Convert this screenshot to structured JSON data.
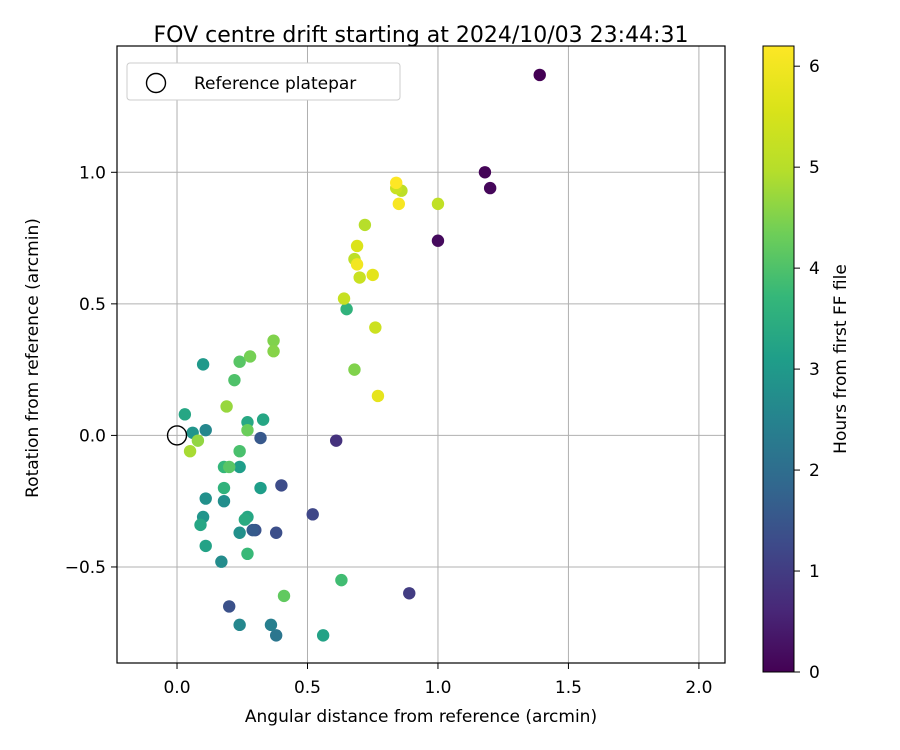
{
  "chart_data": {
    "type": "scatter",
    "title": "FOV centre drift starting at 2024/10/03 23:44:31",
    "xlabel": "Angular distance from reference (arcmin)",
    "ylabel": "Rotation from reference (arcmin)",
    "xlim": [
      -0.23,
      2.1
    ],
    "ylim": [
      -0.865,
      1.48
    ],
    "xticks": [
      0.0,
      0.5,
      1.0,
      1.5,
      2.0
    ],
    "xtick_labels": [
      "0.0",
      "0.5",
      "1.0",
      "1.5",
      "2.0"
    ],
    "yticks": [
      -0.5,
      0.0,
      0.5,
      1.0
    ],
    "ytick_labels": [
      "−0.5",
      "0.0",
      "0.5",
      "1.0"
    ],
    "grid": true,
    "colormap": "viridis",
    "colorbar": {
      "label": "Hours from first FF file",
      "range": [
        0,
        6.2
      ],
      "ticks": [
        0,
        1,
        2,
        3,
        4,
        5,
        6
      ],
      "tick_labels": [
        "0",
        "1",
        "2",
        "3",
        "4",
        "5",
        "6"
      ]
    },
    "legend": {
      "position": "upper-left",
      "entries": [
        "Reference platepar"
      ]
    },
    "reference_point": {
      "x": 0.0,
      "y": 0.0
    },
    "points": [
      {
        "x": 1.39,
        "y": 1.37,
        "c": 0.0
      },
      {
        "x": 1.18,
        "y": 1.0,
        "c": 0.05
      },
      {
        "x": 1.2,
        "y": 0.94,
        "c": 0.1
      },
      {
        "x": 1.0,
        "y": 0.74,
        "c": 0.15
      },
      {
        "x": 0.61,
        "y": -0.02,
        "c": 0.8
      },
      {
        "x": 0.89,
        "y": -0.6,
        "c": 1.0
      },
      {
        "x": 0.52,
        "y": -0.3,
        "c": 1.2
      },
      {
        "x": 0.4,
        "y": -0.19,
        "c": 1.3
      },
      {
        "x": 0.38,
        "y": -0.37,
        "c": 1.35
      },
      {
        "x": 0.3,
        "y": -0.36,
        "c": 1.45
      },
      {
        "x": 0.2,
        "y": -0.65,
        "c": 1.4
      },
      {
        "x": 0.32,
        "y": -0.01,
        "c": 1.55
      },
      {
        "x": 0.29,
        "y": -0.36,
        "c": 1.6
      },
      {
        "x": 0.38,
        "y": -0.76,
        "c": 2.2
      },
      {
        "x": 0.36,
        "y": -0.72,
        "c": 2.4
      },
      {
        "x": 0.24,
        "y": -0.72,
        "c": 2.6
      },
      {
        "x": 0.17,
        "y": -0.48,
        "c": 2.7
      },
      {
        "x": 0.24,
        "y": -0.37,
        "c": 2.8
      },
      {
        "x": 0.1,
        "y": -0.31,
        "c": 2.9
      },
      {
        "x": 0.11,
        "y": -0.24,
        "c": 2.8
      },
      {
        "x": 0.18,
        "y": -0.25,
        "c": 2.75
      },
      {
        "x": 0.11,
        "y": 0.02,
        "c": 2.6
      },
      {
        "x": 0.06,
        "y": 0.01,
        "c": 2.9
      },
      {
        "x": 0.1,
        "y": 0.27,
        "c": 3.0
      },
      {
        "x": 0.24,
        "y": -0.12,
        "c": 3.1
      },
      {
        "x": 0.32,
        "y": -0.2,
        "c": 3.1
      },
      {
        "x": 0.56,
        "y": -0.76,
        "c": 3.2
      },
      {
        "x": 0.11,
        "y": -0.42,
        "c": 3.2
      },
      {
        "x": 0.09,
        "y": -0.34,
        "c": 3.3
      },
      {
        "x": 0.27,
        "y": -0.31,
        "c": 3.3
      },
      {
        "x": 0.26,
        "y": -0.32,
        "c": 3.4
      },
      {
        "x": 0.27,
        "y": 0.05,
        "c": 3.35
      },
      {
        "x": 0.33,
        "y": 0.06,
        "c": 3.3
      },
      {
        "x": 0.03,
        "y": 0.08,
        "c": 3.3
      },
      {
        "x": 0.65,
        "y": 0.48,
        "c": 3.6
      },
      {
        "x": 0.18,
        "y": -0.2,
        "c": 3.6
      },
      {
        "x": 0.18,
        "y": -0.12,
        "c": 3.7
      },
      {
        "x": 0.27,
        "y": -0.45,
        "c": 3.75
      },
      {
        "x": 0.63,
        "y": -0.55,
        "c": 3.85
      },
      {
        "x": 0.24,
        "y": -0.06,
        "c": 3.95
      },
      {
        "x": 0.2,
        "y": -0.12,
        "c": 4.1
      },
      {
        "x": 0.22,
        "y": 0.21,
        "c": 4.0
      },
      {
        "x": 0.24,
        "y": 0.28,
        "c": 4.1
      },
      {
        "x": 0.41,
        "y": -0.61,
        "c": 4.2
      },
      {
        "x": 0.27,
        "y": 0.02,
        "c": 4.3
      },
      {
        "x": 0.28,
        "y": 0.3,
        "c": 4.4
      },
      {
        "x": 0.37,
        "y": 0.36,
        "c": 4.5
      },
      {
        "x": 0.37,
        "y": 0.32,
        "c": 4.55
      },
      {
        "x": 0.68,
        "y": 0.25,
        "c": 4.5
      },
      {
        "x": 0.08,
        "y": -0.02,
        "c": 4.65
      },
      {
        "x": 0.19,
        "y": 0.11,
        "c": 4.7
      },
      {
        "x": 0.05,
        "y": -0.06,
        "c": 4.85
      },
      {
        "x": 0.72,
        "y": 0.8,
        "c": 5.0
      },
      {
        "x": 0.68,
        "y": 0.67,
        "c": 5.1
      },
      {
        "x": 1.0,
        "y": 0.88,
        "c": 5.15
      },
      {
        "x": 0.86,
        "y": 0.93,
        "c": 5.1
      },
      {
        "x": 0.84,
        "y": 0.94,
        "c": 5.3
      },
      {
        "x": 0.7,
        "y": 0.6,
        "c": 5.3
      },
      {
        "x": 0.64,
        "y": 0.52,
        "c": 5.25
      },
      {
        "x": 0.76,
        "y": 0.41,
        "c": 5.35
      },
      {
        "x": 0.69,
        "y": 0.72,
        "c": 5.6
      },
      {
        "x": 0.75,
        "y": 0.61,
        "c": 5.75
      },
      {
        "x": 0.77,
        "y": 0.15,
        "c": 5.8
      },
      {
        "x": 0.69,
        "y": 0.65,
        "c": 6.0
      },
      {
        "x": 0.85,
        "y": 0.88,
        "c": 6.1
      },
      {
        "x": 0.84,
        "y": 0.96,
        "c": 6.2
      }
    ]
  }
}
